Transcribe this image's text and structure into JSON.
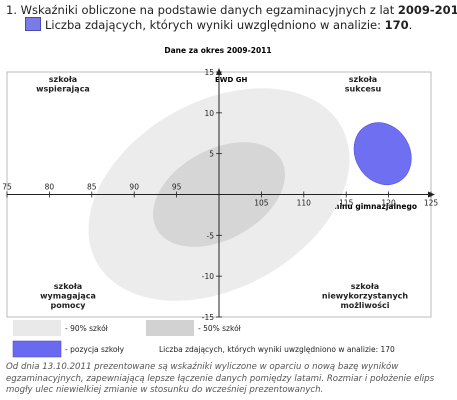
{
  "header": {
    "number": "1.",
    "text_prefix": "Wskaźniki obliczone na podstawie danych egzaminacyjnych z lat",
    "years": "2009-2011",
    "period_suffix": ".",
    "count_prefix": "Liczba zdających, których wyniki uwzględniono w analizie:",
    "count_value": "170",
    "count_suffix": "."
  },
  "chart_data": {
    "type": "scatter",
    "title": "Dane za okres 2009-2011",
    "ylabel": "EWD GH",
    "xlabel": "wynik egzaminu gimnazjalnego",
    "xlim": [
      75,
      125
    ],
    "ylim": [
      -15,
      15
    ],
    "x_ticks": [
      75,
      80,
      85,
      90,
      95,
      100,
      105,
      110,
      115,
      120,
      125
    ],
    "x_tick_labels": [
      "75",
      "80",
      "85",
      "90",
      "95",
      "",
      "105",
      "110",
      "115",
      "120",
      "125"
    ],
    "y_ticks": [
      -15,
      -10,
      -5,
      0,
      5,
      10,
      15
    ],
    "y_tick_labels": [
      "-15",
      "-10",
      "-5",
      "",
      "5",
      "10",
      "15"
    ],
    "quadrants": {
      "top_left": "szkoła\nwspierająca",
      "top_right": "szkoła\nsukcesu",
      "bottom_left": "szkoła\nwymagająca\npomocy",
      "bottom_right": "szkoła\nniewykorzystanych\nmożliwości"
    },
    "ellipses": [
      {
        "name": "90% szkół",
        "cx": 100,
        "cy": 0,
        "rx": 16.5,
        "ry": 2.6,
        "angle_deg": -29,
        "color": "#ececec"
      },
      {
        "name": "50% szkół",
        "cx": 100,
        "cy": 0,
        "rx": 8.4,
        "ry": 1.25,
        "angle_deg": -29,
        "color": "#d6d6d6"
      },
      {
        "name": "pozycja szkoły",
        "cx": 119.3,
        "cy": 5.0,
        "rx": 3.2,
        "ry": 0.9,
        "angle_deg": -31,
        "color": "#6f6ff2"
      }
    ],
    "grid": false
  },
  "legend": {
    "items": [
      {
        "label": "- 90% szkół",
        "color": "#e9e9e9"
      },
      {
        "label": "- 50% szkół",
        "color": "#d2d2d2"
      },
      {
        "label": "- pozycja szkoły",
        "color": "#6a6af0"
      }
    ],
    "count_text": "Liczba zdających, których wyniki uwzględniono w analizie: 170"
  },
  "footnote": "Od dnia 13.10.2011 prezentowane są wskaźniki wyliczone w oparciu o nową bazę wyników egzaminacyjnych, zapewniającą lepsze łączenie danych pomiędzy latami. Rozmiar i położenie elips mogły ulec niewielkiej zmianie w stosunku do wcześniej prezentowanych."
}
